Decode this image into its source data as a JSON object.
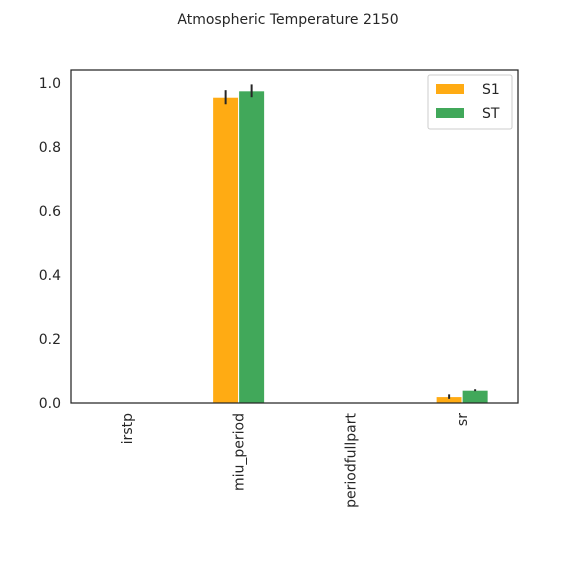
{
  "chart_data": {
    "type": "bar",
    "title": "Atmospheric Temperature 2150",
    "xlabel": "",
    "ylabel": "",
    "categories": [
      "irstp",
      "miu_period",
      "periodfullpart",
      "sr"
    ],
    "series": [
      {
        "name": "S1",
        "color": "#ffab13",
        "values": [
          0.0,
          0.955,
          0.0,
          0.02
        ],
        "errors": [
          0.0,
          0.022,
          0.0,
          0.007
        ]
      },
      {
        "name": "ST",
        "color": "#41a85a",
        "values": [
          0.0,
          0.975,
          0.0,
          0.04
        ],
        "errors": [
          0.0,
          0.02,
          0.0,
          0.003
        ]
      }
    ],
    "ylim": [
      0.0,
      1.04
    ],
    "yticks": [
      "0.0",
      "0.2",
      "0.4",
      "0.6",
      "0.8",
      "1.0"
    ],
    "grid": false,
    "legend_position": "top-right"
  }
}
